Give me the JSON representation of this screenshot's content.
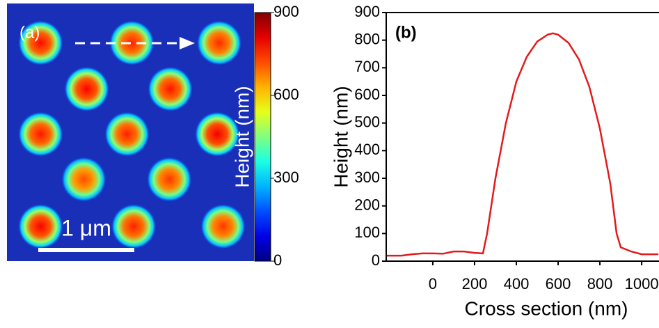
{
  "chart_data": [
    {
      "type": "heatmap",
      "title": "(a)",
      "x": [
        0.35,
        1.3,
        2.21,
        0.83,
        1.7,
        0.35,
        1.25,
        2.19,
        0.8,
        1.69,
        0.35,
        1.32,
        2.25
      ],
      "y": [
        0.41,
        0.41,
        0.41,
        0.89,
        0.89,
        1.36,
        1.36,
        1.36,
        1.83,
        1.83,
        2.32,
        2.32,
        2.32
      ],
      "values": [
        780,
        760,
        750,
        790,
        770,
        770,
        760,
        800,
        720,
        740,
        790,
        760,
        740
      ],
      "zlim": [
        0,
        900
      ],
      "zticks": [
        0,
        300,
        600,
        900
      ],
      "colorbar_label": "Height (nm)",
      "scale_bar": {
        "value": 1,
        "label": "1 μm"
      }
    },
    {
      "type": "line",
      "title": "(b)",
      "x_label": "Cross section (nm)",
      "y_label": "Height (nm)",
      "x": [
        -220,
        -150,
        -100,
        -50,
        0,
        50,
        100,
        150,
        200,
        240,
        260,
        300,
        350,
        400,
        450,
        500,
        550,
        575,
        600,
        650,
        700,
        750,
        800,
        850,
        880,
        900,
        950,
        1000,
        1050,
        1080
      ],
      "series": [
        {
          "color": "#e31a1c",
          "values": [
            20,
            20,
            25,
            28,
            28,
            27,
            35,
            35,
            30,
            28,
            100,
            300,
            500,
            650,
            740,
            795,
            820,
            825,
            820,
            790,
            730,
            630,
            480,
            280,
            100,
            50,
            35,
            25,
            25,
            25
          ]
        }
      ],
      "xlim": [
        -223,
        1083
      ],
      "xticks": [
        0,
        200,
        400,
        600,
        800,
        1000
      ],
      "ylim": [
        0,
        900
      ],
      "yticks": [
        0,
        100,
        200,
        300,
        400,
        500,
        600,
        700,
        800,
        900
      ]
    }
  ]
}
